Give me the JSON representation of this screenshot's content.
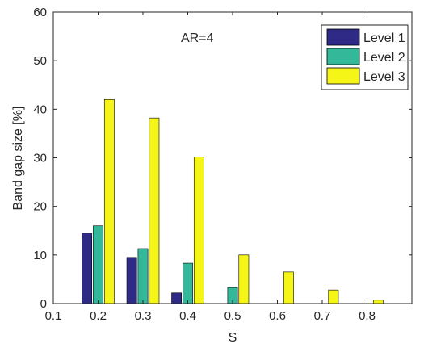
{
  "chart_data": {
    "type": "bar",
    "title": "",
    "annotation": "AR=4",
    "xlabel": "S",
    "ylabel": "Band gap size [%]",
    "categories": [
      0.2,
      0.3,
      0.4,
      0.5,
      0.6,
      0.7,
      0.8
    ],
    "xlim": [
      0.1,
      0.9
    ],
    "ylim": [
      0,
      60
    ],
    "xticks": [
      "0.1",
      "0.2",
      "0.3",
      "0.4",
      "0.5",
      "0.6",
      "0.7",
      "0.8"
    ],
    "yticks": [
      "0",
      "10",
      "20",
      "30",
      "40",
      "50",
      "60"
    ],
    "grid": false,
    "legend_position": "top-right",
    "series": [
      {
        "name": "Level 1",
        "color": "#2E2A86",
        "values": [
          14.5,
          9.5,
          2.2,
          0,
          0,
          0,
          0
        ]
      },
      {
        "name": "Level 2",
        "color": "#33B89A",
        "values": [
          16.0,
          11.3,
          8.3,
          3.3,
          0,
          0,
          0
        ]
      },
      {
        "name": "Level 3",
        "color": "#F5F518",
        "values": [
          42.0,
          38.2,
          30.2,
          10.0,
          6.5,
          2.8,
          0.7
        ]
      }
    ]
  }
}
